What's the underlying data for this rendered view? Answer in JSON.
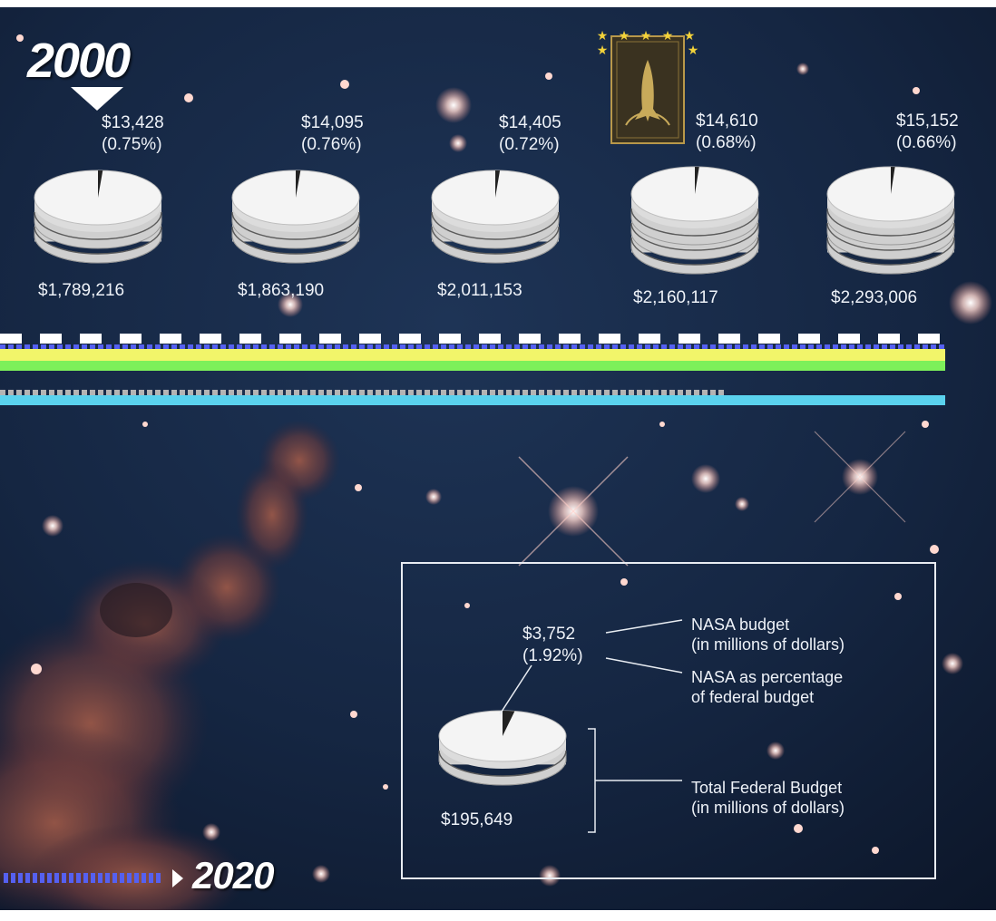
{
  "chart_data": {
    "type": "pie",
    "start_year": "2000",
    "end_year": "2020",
    "stacks": [
      {
        "nasa": "$13,428",
        "pct": "(0.75%)",
        "total": "$1,789,216",
        "nasa_value": 13428,
        "total_value": 1789216,
        "pct_value": 0.75,
        "layers": 3
      },
      {
        "nasa": "$14,095",
        "pct": "(0.76%)",
        "total": "$1,863,190",
        "nasa_value": 14095,
        "total_value": 1863190,
        "pct_value": 0.76,
        "layers": 3
      },
      {
        "nasa": "$14,405",
        "pct": "(0.72%)",
        "total": "$2,011,153",
        "nasa_value": 14405,
        "total_value": 2011153,
        "pct_value": 0.72,
        "layers": 3
      },
      {
        "nasa": "$14,610",
        "pct": "(0.68%)",
        "total": "$2,160,117",
        "nasa_value": 14610,
        "total_value": 2160117,
        "pct_value": 0.68,
        "layers": 4
      },
      {
        "nasa": "$15,152",
        "pct": "(0.66%)",
        "total": "$2,293,006",
        "nasa_value": 15152,
        "total_value": 2293006,
        "pct_value": 0.66,
        "layers": 4
      }
    ],
    "legend": {
      "example_nasa": "$3,752",
      "example_pct": "(1.92%)",
      "example_total": "$195,649",
      "example_pct_value": 1.92,
      "nasa_label_line1": "NASA budget",
      "nasa_label_line2": "(in millions of dollars)",
      "pct_label_line1": "NASA as percentage",
      "pct_label_line2": "of federal budget",
      "total_label_line1": "Total Federal Budget",
      "total_label_line2": "(in millions of dollars)"
    }
  },
  "colors": {
    "stripe_white": "#ffffff",
    "stripe_blue": "#5560f0",
    "stripe_yellow": "#f2f56a",
    "stripe_green": "#7df05a",
    "stripe_gray": "#b4b4b4",
    "stripe_cyan": "#5ad2ee",
    "background": "#12203a",
    "pie_face": "#f4f4f4",
    "pie_side": "#cfcfcf"
  },
  "icons": {
    "badge": "space-shuttle-mission-patch-icon",
    "pointer": "triangle-down-icon",
    "arrow": "triangle-right-icon"
  }
}
